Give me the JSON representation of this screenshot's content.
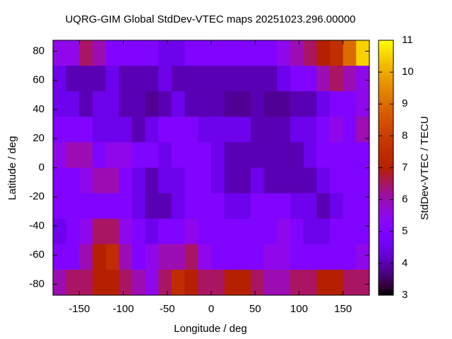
{
  "chart_data": {
    "type": "heatmap",
    "title": "UQRG-GIM Global StdDev-VTEC maps 20251023.296.00000",
    "x_label": "Longitude / deg",
    "y_label": "Latitude / deg",
    "colorbar_label": "StdDev-VTEC / TECU",
    "xlim": [
      -180,
      180
    ],
    "xticks": [
      -150,
      -100,
      -50,
      0,
      50,
      100,
      150
    ],
    "ylim": [
      -87.5,
      87.5
    ],
    "yticks": [
      -80,
      -60,
      -40,
      -20,
      0,
      20,
      40,
      60,
      80
    ],
    "zlim": [
      3,
      11
    ],
    "zticks": [
      3,
      4,
      5,
      6,
      7,
      8,
      9,
      10,
      11
    ],
    "x": [
      -172.5,
      -157.5,
      -142.5,
      -127.5,
      -112.5,
      -97.5,
      -82.5,
      -67.5,
      -52.5,
      -37.5,
      -22.5,
      -7.5,
      7.5,
      22.5,
      37.5,
      52.5,
      67.5,
      82.5,
      97.5,
      112.5,
      127.5,
      142.5,
      157.5,
      172.5
    ],
    "y": [
      78.75,
      61.25,
      43.75,
      26.25,
      8.75,
      -8.75,
      -26.25,
      -43.75,
      -61.25,
      -78.75
    ],
    "values": [
      [
        5.5,
        5.5,
        6.5,
        6,
        5,
        5,
        5,
        5,
        4.5,
        4.5,
        5,
        5,
        5,
        5,
        5,
        5,
        5,
        5.5,
        6,
        6.5,
        7,
        7.5,
        9,
        10.5
      ],
      [
        4.5,
        4,
        4,
        4,
        4.5,
        4,
        4,
        4,
        4.5,
        4,
        4,
        4,
        4,
        4,
        4,
        4,
        4,
        4.5,
        5,
        5,
        6,
        6.5,
        6,
        5.5
      ],
      [
        4.5,
        4.5,
        4,
        4.5,
        4.5,
        4,
        4,
        3.8,
        4,
        4.5,
        4,
        4,
        4,
        3.8,
        3.8,
        4,
        3.8,
        3.8,
        4,
        4,
        4.5,
        5,
        5,
        5.5
      ],
      [
        5,
        5,
        5,
        4.5,
        4.5,
        4.5,
        4,
        4.5,
        5,
        5,
        5,
        4.5,
        4.5,
        4.5,
        4.5,
        4,
        4,
        4,
        4.5,
        4.5,
        5,
        5.5,
        5,
        6
      ],
      [
        5.5,
        6,
        6,
        5,
        5.5,
        5.5,
        5,
        5,
        4.5,
        5,
        5,
        5,
        4.5,
        4,
        4,
        4,
        4,
        4,
        4,
        4.5,
        5,
        5,
        5,
        5
      ],
      [
        5,
        5,
        5.5,
        6,
        6,
        5,
        4.5,
        4,
        4.5,
        4.5,
        5,
        5,
        4.5,
        4,
        4,
        4.5,
        4,
        4,
        4,
        4,
        4.5,
        5,
        5,
        5
      ],
      [
        5,
        5,
        5,
        5,
        5,
        5,
        4.5,
        4,
        4,
        4.5,
        5,
        5,
        5,
        4.5,
        4.5,
        5,
        5,
        5,
        4.5,
        4.5,
        4,
        4.5,
        5,
        5
      ],
      [
        4.5,
        5,
        5.5,
        6.5,
        6.5,
        5.5,
        5,
        4.5,
        5,
        5,
        5.5,
        5,
        5,
        5,
        5,
        5,
        5,
        5.5,
        5,
        4.5,
        4.5,
        5,
        5,
        5
      ],
      [
        5,
        5,
        6,
        7,
        7.5,
        6,
        5,
        5.5,
        6,
        6,
        6.5,
        5.5,
        5,
        5,
        5,
        5,
        5.5,
        5.5,
        5,
        5,
        5,
        5,
        5,
        5.5
      ],
      [
        6,
        6.5,
        6.5,
        7,
        7,
        6.5,
        6,
        5.5,
        6.5,
        7.5,
        7,
        6.5,
        6.5,
        7,
        7,
        6.5,
        6,
        6,
        6.5,
        6.5,
        7,
        7,
        6.5,
        6.5
      ]
    ]
  }
}
